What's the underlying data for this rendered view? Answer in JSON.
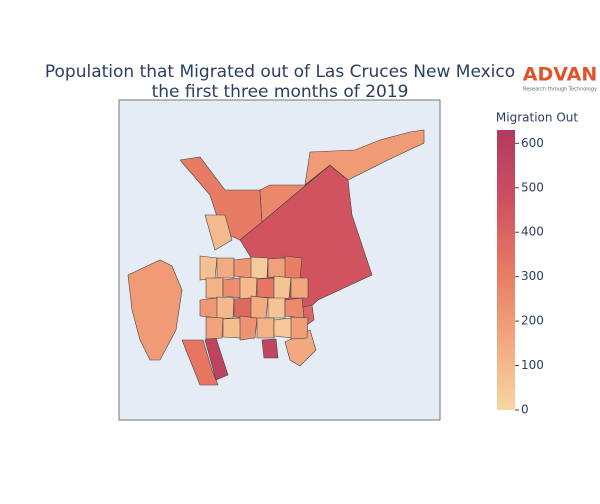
{
  "chart_data": {
    "type": "choropleth",
    "title": "Population that Migrated out of Las Cruces New Mexico",
    "subtitle": "the first three months of 2019",
    "logo": {
      "name": "ADVAN",
      "tagline": "Research through Technology"
    },
    "colorbar": {
      "title": "Migration Out",
      "lim": [
        0,
        630
      ],
      "ticks": [
        0,
        100,
        200,
        300,
        400,
        500,
        600
      ],
      "colorscale": [
        [
          0,
          "#f7d6a3"
        ],
        [
          0.25,
          "#f3a77e"
        ],
        [
          0.5,
          "#e87a62"
        ],
        [
          0.75,
          "#cf5060"
        ],
        [
          1,
          "#b3395f"
        ]
      ]
    },
    "values": [
      460,
      200,
      310,
      270,
      200,
      330,
      560,
      570,
      540,
      390,
      150,
      90,
      70,
      140,
      220,
      40,
      180,
      300,
      120,
      250,
      90,
      330,
      60,
      160,
      210,
      100,
      380,
      140,
      60,
      260,
      170,
      80,
      230,
      120,
      50,
      190
    ]
  }
}
